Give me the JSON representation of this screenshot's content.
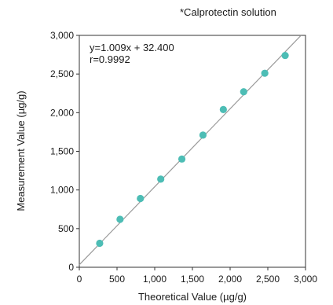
{
  "chart_data": {
    "type": "scatter",
    "note": "*Calprotectin solution",
    "xlabel": "Theoretical Value (µg/g)",
    "ylabel": "Measurement Value (µg/g)",
    "xlim": [
      0,
      3000
    ],
    "ylim": [
      0,
      3000
    ],
    "x_ticks": [
      0,
      500,
      1000,
      1500,
      2000,
      2500,
      3000
    ],
    "y_ticks": [
      0,
      500,
      1000,
      1500,
      2000,
      2500,
      3000
    ],
    "x_tick_labels": [
      "0",
      "500",
      "1,000",
      "1,500",
      "2,000",
      "2,500",
      "3,000"
    ],
    "y_tick_labels": [
      "0",
      "500",
      "1,000",
      "1,500",
      "2,000",
      "2,500",
      "3,000"
    ],
    "grid": false,
    "point_color": "#4dbdb5",
    "line_color": "#9a9a9a",
    "regression": {
      "slope": 1.009,
      "intercept": 32.4
    },
    "annotations": [
      "y=1.009x + 32.400",
      "r=0.9992"
    ],
    "series": [
      {
        "x": [
          270,
          540,
          810,
          1080,
          1360,
          1640,
          1910,
          2180,
          2460,
          2730
        ],
        "y": [
          310,
          620,
          890,
          1140,
          1400,
          1710,
          2040,
          2270,
          2510,
          2740
        ]
      }
    ]
  }
}
